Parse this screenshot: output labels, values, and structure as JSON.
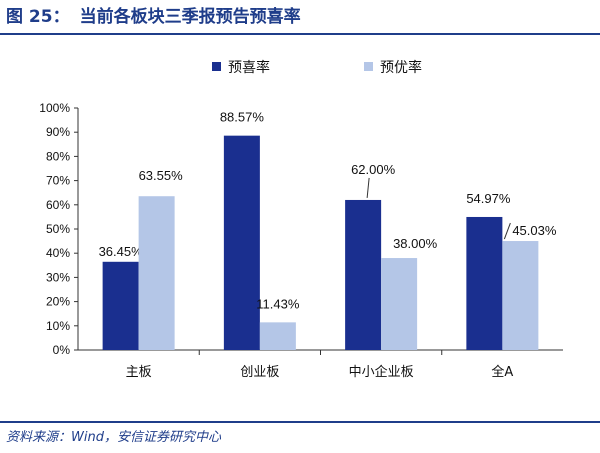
{
  "figure": {
    "label": "图 25：",
    "title": "当前各板块三季报预告预喜率",
    "source": "资料来源：Wind，安信证券研究中心"
  },
  "chart_data": {
    "type": "bar",
    "categories": [
      "主板",
      "创业板",
      "中小企业板",
      "全A"
    ],
    "series": [
      {
        "name": "预喜率",
        "values": [
          36.45,
          88.57,
          62.0,
          54.97
        ],
        "labels": [
          "36.45%",
          "88.57%",
          "62.00%",
          "54.97%"
        ],
        "color": "#1a2f8f"
      },
      {
        "name": "预优率",
        "values": [
          63.55,
          11.43,
          38.0,
          45.03
        ],
        "labels": [
          "63.55%",
          "11.43%",
          "38.00%",
          "45.03%"
        ],
        "color": "#b4c6e7"
      }
    ],
    "ylim": [
      0,
      100
    ],
    "yticks": [
      "0%",
      "10%",
      "20%",
      "30%",
      "40%",
      "50%",
      "60%",
      "70%",
      "80%",
      "90%",
      "100%"
    ],
    "legend_position": "top",
    "grid": false
  }
}
